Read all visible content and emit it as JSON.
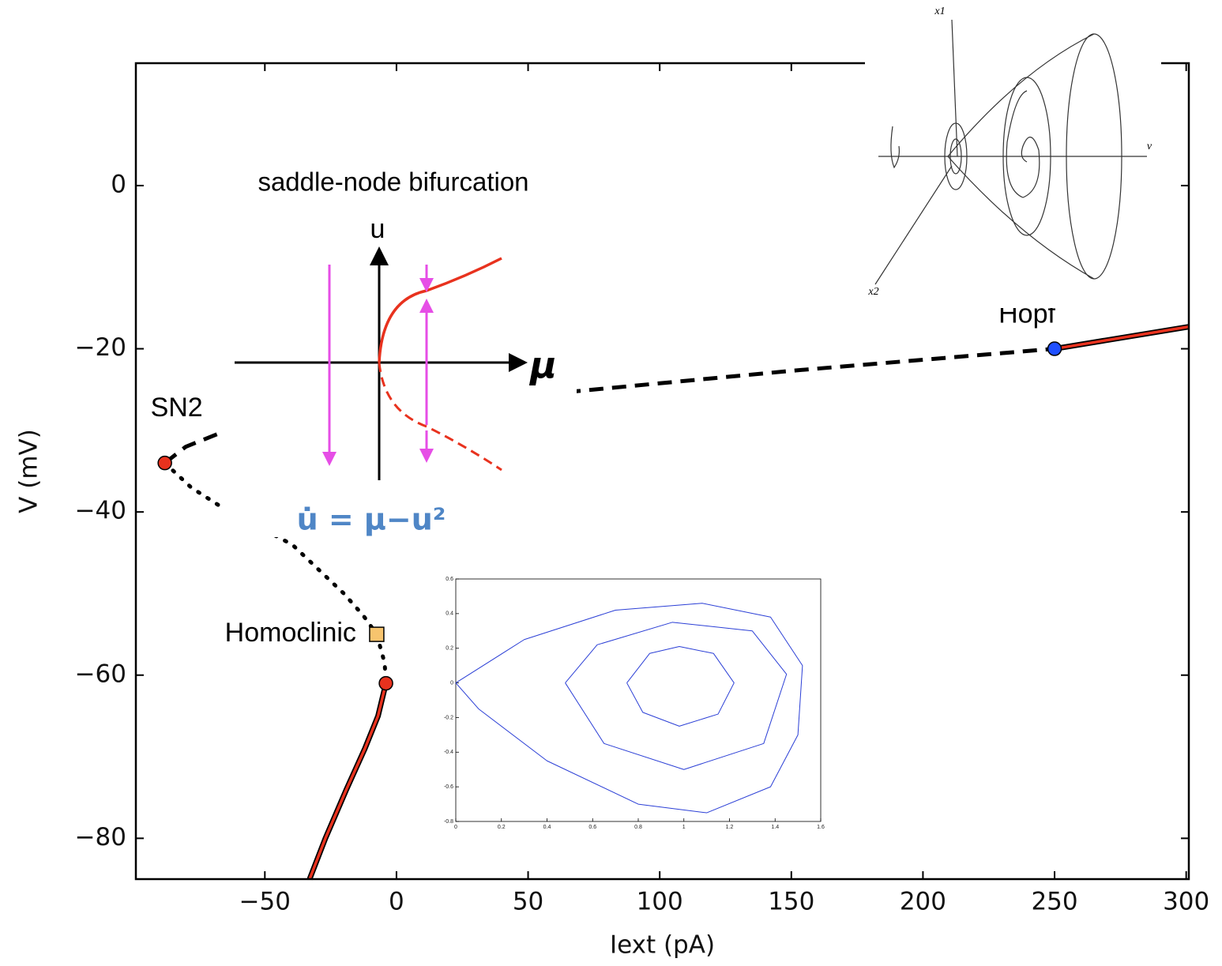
{
  "chart_data": [
    {
      "type": "line",
      "x_label": "Iext (pA)",
      "y_label": "V (mV)",
      "xlim": [
        -99,
        301
      ],
      "ylim": [
        -85,
        15
      ],
      "xticks": [
        {
          "value": -50,
          "label": "−50"
        },
        0,
        50,
        100,
        150,
        200,
        250,
        300
      ],
      "yticks": [
        {
          "value": -80,
          "label": "−80"
        },
        {
          "value": -60,
          "label": "−60"
        },
        {
          "value": -40,
          "label": "−40"
        },
        {
          "value": -20,
          "label": "−20"
        },
        0
      ],
      "series": [
        {
          "style": "solid-outlined",
          "color": "#e8321e",
          "x": [
            -33,
            -27,
            -19,
            -12,
            -7,
            -4
          ],
          "values": [
            -85,
            -80,
            -74,
            -69,
            -65,
            -61
          ]
        },
        {
          "style": "solid-outlined",
          "color": "#e8321e",
          "x": [
            250,
            301
          ],
          "values": [
            -20,
            -17.3
          ]
        },
        {
          "style": "dashed",
          "color": "#000000",
          "x": [
            -88,
            -80,
            -66,
            0,
            68.5,
            150,
            250
          ],
          "values": [
            -34,
            -32,
            -30.2,
            -27.5,
            -25.2,
            -22.7,
            -20
          ]
        },
        {
          "style": "dotted",
          "color": "#000000",
          "x": [
            -88,
            -78,
            -66,
            -39.6,
            -20,
            -12.6,
            -7.5,
            -4.5,
            -4
          ],
          "values": [
            -34,
            -37,
            -39.5,
            -44,
            -50,
            -52.7,
            -55,
            -58.5,
            -61
          ]
        }
      ],
      "points": [
        {
          "label": "SN2",
          "marker": "circle",
          "color": "#e8321e",
          "x": -88,
          "y": -34
        },
        {
          "marker": "circle",
          "color": "#e8321e",
          "x": -4,
          "y": -61
        },
        {
          "label": "Homoclinic",
          "marker": "square",
          "color": "#f7c46e",
          "x": -7.5,
          "y": -55
        },
        {
          "label": "Hopf",
          "marker": "circle",
          "color": "#1f4fff",
          "x": 250,
          "y": -20
        }
      ]
    },
    {
      "type": "line",
      "xlim": [
        0,
        1.6
      ],
      "ylim": [
        -0.8,
        0.6
      ],
      "xticks": [
        0,
        0.2,
        0.4,
        0.6,
        0.8,
        1,
        1.2,
        1.4,
        1.6
      ],
      "yticks": [
        -0.8,
        -0.6,
        -0.4,
        -0.2,
        0,
        0.2,
        0.4,
        0.6
      ],
      "series": [
        {
          "color": "#2b3fd6",
          "x": [
            0.75,
            0.85,
            0.98,
            1.13,
            1.22,
            1.15,
            0.98,
            0.82,
            0.75
          ],
          "values": [
            0,
            0.17,
            0.21,
            0.17,
            0,
            -0.18,
            -0.25,
            -0.17,
            0
          ]
        },
        {
          "color": "#2b3fd6",
          "x": [
            0.48,
            0.62,
            0.95,
            1.3,
            1.45,
            1.35,
            1,
            0.65,
            0.48
          ],
          "values": [
            0,
            0.22,
            0.35,
            0.3,
            0.05,
            -0.35,
            -0.5,
            -0.35,
            0
          ]
        },
        {
          "color": "#2b3fd6",
          "x": [
            0,
            0.3,
            0.7,
            1.08,
            1.38,
            1.52,
            1.5,
            1.38,
            1.1,
            0.8,
            0.4,
            0.1,
            0
          ],
          "values": [
            0,
            0.25,
            0.42,
            0.46,
            0.38,
            0.1,
            -0.3,
            -0.6,
            -0.75,
            -0.7,
            -0.45,
            -0.15,
            0
          ]
        }
      ]
    }
  ],
  "saddle_node": {
    "title": "saddle-node bifurcation",
    "u_label": "u",
    "mu_label": "μ",
    "equation": "u̇ = μ−u²"
  },
  "cone": {
    "x1_label": "x1",
    "x2_label": "x2",
    "v_label": "v"
  }
}
